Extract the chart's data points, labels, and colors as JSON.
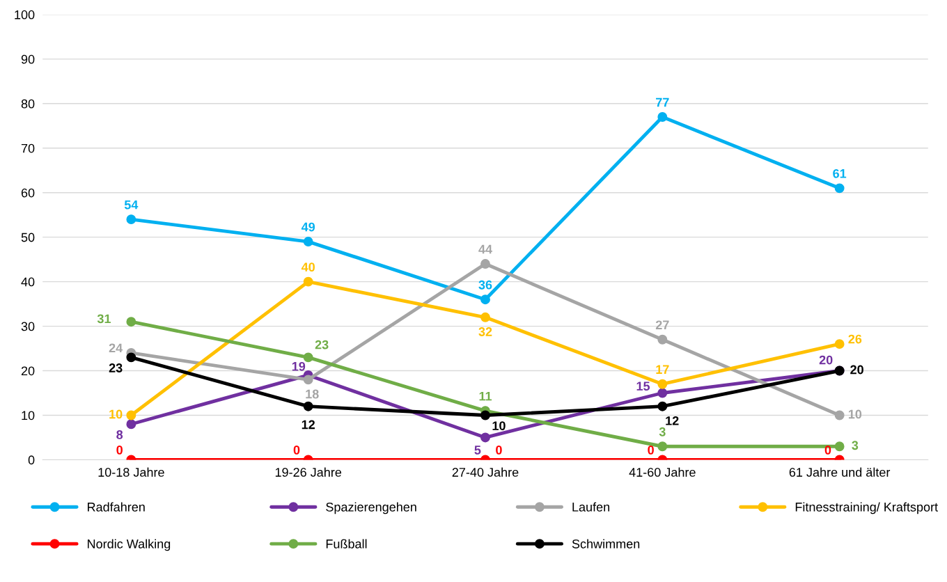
{
  "chart_data": {
    "type": "line",
    "categories": [
      "10-18 Jahre",
      "19-26 Jahre",
      "27-40 Jahre",
      "41-60 Jahre",
      "61 Jahre und älter"
    ],
    "series": [
      {
        "name": "Radfahren",
        "color": "#00b0f0",
        "values": [
          54,
          49,
          36,
          77,
          61
        ]
      },
      {
        "name": "Spazierengehen",
        "color": "#7030a0",
        "values": [
          8,
          19,
          5,
          15,
          20
        ]
      },
      {
        "name": "Laufen",
        "color": "#a5a5a5",
        "values": [
          24,
          18,
          44,
          27,
          10
        ]
      },
      {
        "name": "Fitnesstraining/ Kraftsport",
        "color": "#ffc000",
        "values": [
          10,
          40,
          32,
          17,
          26
        ]
      },
      {
        "name": "Nordic Walking",
        "color": "#ff0000",
        "values": [
          0,
          0,
          0,
          0,
          0
        ]
      },
      {
        "name": "Fußball",
        "color": "#70ad47",
        "values": [
          31,
          23,
          11,
          3,
          3
        ]
      },
      {
        "name": "Schwimmen",
        "color": "#000000",
        "values": [
          23,
          12,
          10,
          12,
          20
        ]
      }
    ],
    "ylim": [
      0,
      100
    ],
    "yticks": [
      0,
      10,
      20,
      30,
      40,
      50,
      60,
      70,
      80,
      90,
      100
    ],
    "grid": "y",
    "legend": "bottom",
    "marker": "circle",
    "line_style": "solid",
    "data_labels": true
  }
}
